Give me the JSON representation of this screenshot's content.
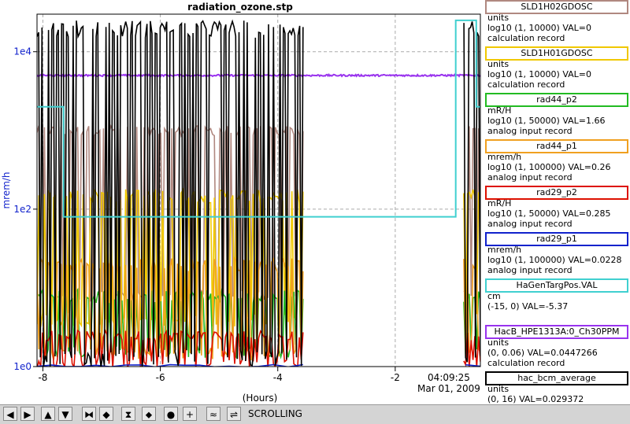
{
  "chart_data": {
    "type": "line",
    "title": "radiation_ozone.stp",
    "xlabel": "(Hours)",
    "ylabel": "mrem/h",
    "y_scale": "log",
    "xlim": [
      -8.1,
      -0.55
    ],
    "ylim": [
      1,
      30000
    ],
    "grid": true,
    "x_ticks": [
      -8,
      -6,
      -4,
      -2
    ],
    "x_tick_labels": [
      "-8",
      "-6",
      "-4",
      "-2"
    ],
    "y_ticks": [
      1,
      100,
      10000
    ],
    "y_tick_labels": [
      "1e0",
      "1e2",
      "1e4"
    ],
    "end_time": "04:09:25",
    "end_date": "Mar 01, 2009",
    "series": [
      {
        "name": "SLD1H02GDOSC",
        "color": "#b08880",
        "gap": [
          -3.55,
          -0.85
        ],
        "low": 8,
        "high": 1000,
        "noise": 0.15,
        "count": 80
      },
      {
        "name": "SLD1H01GDOSC",
        "color": "#f0c800",
        "gap": [
          -3.55,
          -0.85
        ],
        "low": 4,
        "high": 150,
        "noise": 0.2,
        "count": 80
      },
      {
        "name": "rad44_p2",
        "color": "#22bb22",
        "gap": [
          -3.55,
          -0.85
        ],
        "low": 1.6,
        "high": 8,
        "noise": 0.2,
        "count": 80
      },
      {
        "name": "rad44_p1",
        "color": "#f0a020",
        "gap": [
          -3.55,
          -0.85
        ],
        "low": 1.5,
        "high": 20,
        "noise": 0.2,
        "count": 80
      },
      {
        "name": "rad29_p2",
        "color": "#dd1100",
        "gap": [
          -3.55,
          -0.85
        ],
        "low": 1.1,
        "high": 2.5,
        "noise": 0.15,
        "count": 80
      },
      {
        "name": "rad29_p1",
        "color": "#1122cc",
        "gap": [
          -3.55,
          -0.85
        ],
        "low": 1.0,
        "high": 1.05,
        "noise": 0.01,
        "count": 10
      },
      {
        "name": "HacB_HPE1313A:0_Ch30PPM",
        "color": "#9933ee",
        "flat": 5000,
        "noise": 0.05,
        "count": 160
      },
      {
        "name": "hac_bcm_average",
        "color": "#000000",
        "gap": [
          -3.55,
          -0.85
        ],
        "low": 1.3,
        "high": 20000,
        "noise": 0.25,
        "count": 90
      }
    ],
    "step_series": {
      "name": "HaGenTargPos.VAL",
      "color": "#40d0d0",
      "points": [
        [
          -8.1,
          2000
        ],
        [
          -7.65,
          2000
        ],
        [
          -7.65,
          80
        ],
        [
          -0.97,
          80
        ],
        [
          -0.97,
          25000
        ],
        [
          -0.62,
          25000
        ],
        [
          -0.62,
          2000
        ],
        [
          -0.55,
          2000
        ]
      ]
    }
  },
  "legend": [
    {
      "name": "SLD1H02GDOSC",
      "color": "#b08880",
      "units": "units",
      "range": "log10 (1, 10000) VAL=0",
      "record": "calculation record"
    },
    {
      "name": "SLD1H01GDOSC",
      "color": "#f0c800",
      "units": "units",
      "range": "log10 (1, 10000) VAL=0",
      "record": "calculation record"
    },
    {
      "name": "rad44_p2",
      "color": "#22bb22",
      "units": "mR/H",
      "range": "log10 (1, 50000) VAL=1.66",
      "record": "analog input record"
    },
    {
      "name": "rad44_p1",
      "color": "#f0a020",
      "units": "mrem/h",
      "range": "log10 (1, 100000) VAL=0.26",
      "record": "analog input record"
    },
    {
      "name": "rad29_p2",
      "color": "#dd1100",
      "units": "mR/H",
      "range": "log10 (1, 50000) VAL=0.285",
      "record": "analog input record"
    },
    {
      "name": "rad29_p1",
      "color": "#1122cc",
      "units": "mrem/h",
      "range": "log10 (1, 100000) VAL=0.0228",
      "record": "analog input record"
    },
    {
      "name": "HaGenTargPos.VAL",
      "color": "#40d0d0",
      "units": "cm",
      "range": "(-15, 0) VAL=-5.37",
      "record": ""
    },
    {
      "name": "HacB_HPE1313A:0_Ch30PPM",
      "color": "#9933ee",
      "units": "units",
      "range": "(0, 0.06) VAL=0.0447266",
      "record": "calculation record"
    },
    {
      "name": "hac_bcm_average",
      "color": "#000000",
      "units": "units",
      "range": "(0, 16) VAL=0.029372",
      "record": "calculation record"
    }
  ],
  "toolbar": {
    "status": "SCROLLING",
    "buttons": [
      {
        "icon": "arrow-left-icon",
        "glyph": "◀"
      },
      {
        "icon": "arrow-right-icon",
        "glyph": "▶"
      },
      {
        "icon": "arrow-up-icon",
        "glyph": "▲"
      },
      {
        "icon": "arrow-down-icon",
        "glyph": "▼"
      },
      {
        "icon": "zoom-in-horizontal-icon",
        "glyph": "⧓"
      },
      {
        "icon": "zoom-out-horizontal-icon",
        "glyph": "◆"
      },
      {
        "icon": "zoom-in-vertical-icon",
        "glyph": "⧗"
      },
      {
        "icon": "zoom-out-vertical-icon",
        "glyph": "⬥"
      },
      {
        "icon": "record-icon",
        "glyph": "●"
      },
      {
        "icon": "plus-icon",
        "glyph": "+"
      },
      {
        "icon": "autoscale-icon",
        "glyph": "≈"
      },
      {
        "icon": "scroll-mode-icon",
        "glyph": "⇌"
      }
    ]
  }
}
